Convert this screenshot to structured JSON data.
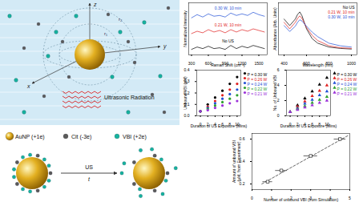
{
  "diagram": {
    "axis_labels": [
      "x",
      "y",
      "z"
    ],
    "radius_labels": [
      "r₁",
      "r₂"
    ],
    "radiation_label": "Ultrasonic Radiation",
    "legend": [
      {
        "label": "AuNP (+1e)",
        "color": "#e3b021"
      },
      {
        "label": "Cit (-3e)",
        "color": "#5a5a5a"
      },
      {
        "label": "VBI (+2e)",
        "color": "#16b39f"
      }
    ],
    "process": {
      "above_arrow": "US",
      "below_arrow": "t"
    }
  },
  "chart_data": [
    {
      "type": "line",
      "x_label": "Raman Shift (cm⁻¹)",
      "y_label": "Normalized Intensity",
      "x": [
        300,
        400,
        500,
        600,
        700,
        800,
        900,
        1000,
        1100,
        1200,
        1300,
        1400,
        1500,
        1600
      ],
      "series": [
        {
          "name": "0.30 W, 10 min",
          "color": "#1f4fd6",
          "values": [
            3.05,
            3.25,
            3.1,
            3.3,
            3.15,
            3.2,
            3.1,
            3.35,
            3.2,
            3.3,
            3.2,
            3.4,
            3.25,
            3.15
          ]
        },
        {
          "name": "0.21 W, 10 min",
          "color": "#e02020",
          "values": [
            2.05,
            2.2,
            2.1,
            2.3,
            2.15,
            2.25,
            2.1,
            2.3,
            2.15,
            2.3,
            2.2,
            2.35,
            2.25,
            2.15
          ]
        },
        {
          "name": "No US",
          "color": "#000000",
          "values": [
            1.05,
            1.2,
            1.1,
            1.25,
            1.1,
            1.15,
            1.05,
            1.3,
            1.1,
            1.25,
            1.15,
            1.3,
            1.2,
            1.1
          ]
        }
      ],
      "xlim": [
        250,
        1650
      ],
      "xticks": [
        300,
        600,
        900,
        1200,
        1500
      ],
      "ylim": [
        0.7,
        4.0
      ],
      "tick_labels": "x"
    },
    {
      "type": "line",
      "x_label": "Wavelength (nm)",
      "y_label": "Absorbance (Arb. Units)",
      "x": [
        400,
        450,
        500,
        520,
        540,
        560,
        600,
        650,
        700,
        800,
        900,
        1000
      ],
      "series": [
        {
          "name": "No US",
          "color": "#000000",
          "values": [
            0.55,
            0.45,
            0.55,
            0.62,
            0.66,
            0.6,
            0.4,
            0.25,
            0.18,
            0.12,
            0.1,
            0.09
          ]
        },
        {
          "name": "0.21 W, 10 min",
          "color": "#e02020",
          "values": [
            0.5,
            0.4,
            0.5,
            0.56,
            0.6,
            0.56,
            0.42,
            0.3,
            0.22,
            0.14,
            0.11,
            0.1
          ]
        },
        {
          "name": "0.30 W, 10 min",
          "color": "#1f4fd6",
          "values": [
            0.45,
            0.36,
            0.44,
            0.5,
            0.54,
            0.52,
            0.44,
            0.35,
            0.28,
            0.18,
            0.14,
            0.12
          ]
        }
      ],
      "xlim": [
        350,
        1050
      ],
      "xticks": [
        400,
        600,
        800,
        1000
      ],
      "ylim": [
        0,
        0.8
      ],
      "tick_labels": "x",
      "legend": "top-right"
    },
    {
      "type": "scatter",
      "x_label": "Duration of US Exposure (Mins)",
      "y_label": "Unbound VBI (μM)",
      "marker": "circle",
      "x": [
        0,
        2,
        4,
        6,
        8,
        10
      ],
      "series": [
        {
          "name": "P = 0.30 W",
          "color": "#000000",
          "values": [
            0.04,
            0.1,
            0.16,
            0.22,
            0.28,
            0.34
          ]
        },
        {
          "name": "P = 0.26 W",
          "color": "#e02020",
          "values": [
            0.04,
            0.08,
            0.13,
            0.18,
            0.23,
            0.28
          ]
        },
        {
          "name": "P = 0.24 W",
          "color": "#1f4fd6",
          "values": [
            0.04,
            0.07,
            0.11,
            0.15,
            0.19,
            0.23
          ]
        },
        {
          "name": "P = 0.22 W",
          "color": "#2ca02c",
          "values": [
            0.04,
            0.06,
            0.09,
            0.12,
            0.15,
            0.18
          ]
        },
        {
          "name": "P = 0.21 W",
          "color": "#9b30d9",
          "values": [
            0.04,
            0.05,
            0.07,
            0.09,
            0.11,
            0.13
          ]
        }
      ],
      "xlim": [
        -1,
        11
      ],
      "xticks": [
        0,
        2,
        4,
        6,
        8,
        10
      ],
      "ylim": [
        0,
        0.4
      ],
      "yticks": [
        {
          "value": 0,
          "label": "0.0"
        },
        0.1,
        0.2,
        0.3,
        0.4
      ],
      "legend": "right"
    },
    {
      "type": "scatter",
      "x_label": "Duration of US Exposure (Mins)",
      "y_label": "No. of Unbound VBI",
      "marker": "triangle",
      "x": [
        0,
        2,
        4,
        6,
        8,
        10
      ],
      "series": [
        {
          "name": "P = 0.30 W",
          "color": "#000000",
          "values": [
            0.5,
            1.4,
            2.3,
            3.2,
            4.1,
            5.0
          ]
        },
        {
          "name": "P = 0.26 W",
          "color": "#e02020",
          "values": [
            0.5,
            1.2,
            1.9,
            2.6,
            3.3,
            4.0
          ]
        },
        {
          "name": "P = 0.24 W",
          "color": "#1f4fd6",
          "values": [
            0.5,
            1.0,
            1.6,
            2.1,
            2.7,
            3.2
          ]
        },
        {
          "name": "P = 0.22 W",
          "color": "#2ca02c",
          "values": [
            0.5,
            0.9,
            1.3,
            1.7,
            2.1,
            2.5
          ]
        },
        {
          "name": "P = 0.21 W",
          "color": "#9b30d9",
          "values": [
            0.5,
            0.8,
            1.1,
            1.4,
            1.7,
            2.0
          ]
        }
      ],
      "xlim": [
        -1,
        11
      ],
      "xticks": [
        0,
        2,
        4,
        6,
        8,
        10
      ],
      "ylim": [
        0,
        6
      ],
      "yticks": [
        0,
        2,
        4,
        6
      ],
      "legend": "right"
    },
    {
      "type": "scatter",
      "x_label": "Number of unbound VBI (from Simulation)",
      "y_label": "Amount of unbound VBI\n(μM, from Experiment)",
      "marker": "square",
      "color": "#000000",
      "x": [
        0.8,
        1.5,
        3.0,
        4.5
      ],
      "x_error": [
        0.25,
        0.3,
        0.35,
        0.3
      ],
      "values": [
        0.22,
        0.32,
        0.45,
        0.6
      ],
      "fit": {
        "x": [
          0.5,
          4.9
        ],
        "y": [
          0.2,
          0.63
        ],
        "line_style": "dashed",
        "color": "#000000"
      },
      "xlim": [
        0,
        5
      ],
      "xticks": [
        0,
        1,
        2,
        3,
        4,
        5
      ],
      "ylim": [
        0.15,
        0.65
      ],
      "yticks": [
        0.2,
        0.4,
        0.6
      ]
    }
  ]
}
